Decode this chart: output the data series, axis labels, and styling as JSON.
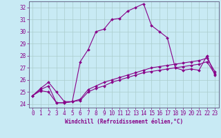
{
  "xlabel": "Windchill (Refroidissement éolien,°C)",
  "bg_color": "#c8eaf4",
  "line_color": "#880088",
  "grid_color": "#aacccc",
  "ylim": [
    23.7,
    32.5
  ],
  "xlim": [
    -0.5,
    23.5
  ],
  "yticks": [
    24,
    25,
    26,
    27,
    28,
    29,
    30,
    31,
    32
  ],
  "xticks": [
    0,
    1,
    2,
    3,
    4,
    5,
    6,
    7,
    8,
    9,
    10,
    11,
    12,
    13,
    14,
    15,
    16,
    17,
    18,
    19,
    20,
    21,
    22,
    23
  ],
  "series": [
    [
      24.7,
      25.2,
      25.5,
      24.1,
      24.1,
      24.2,
      27.5,
      28.5,
      30.0,
      30.2,
      31.0,
      31.1,
      31.7,
      32.0,
      32.3,
      30.5,
      30.0,
      29.5,
      27.0,
      26.8,
      26.9,
      26.8,
      28.0,
      26.4
    ],
    [
      24.7,
      25.1,
      25.0,
      24.1,
      24.1,
      24.2,
      24.3,
      25.0,
      25.3,
      25.5,
      25.8,
      26.0,
      26.2,
      26.4,
      26.6,
      26.7,
      26.8,
      26.9,
      27.0,
      27.1,
      27.2,
      27.3,
      27.5,
      26.5
    ],
    [
      24.7,
      25.3,
      25.8,
      25.0,
      24.2,
      24.2,
      24.4,
      25.2,
      25.5,
      25.8,
      26.0,
      26.2,
      26.4,
      26.6,
      26.8,
      27.0,
      27.1,
      27.2,
      27.3,
      27.4,
      27.5,
      27.6,
      27.8,
      26.7
    ]
  ],
  "xlabel_fontsize": 5.5,
  "tick_fontsize": 5.5
}
